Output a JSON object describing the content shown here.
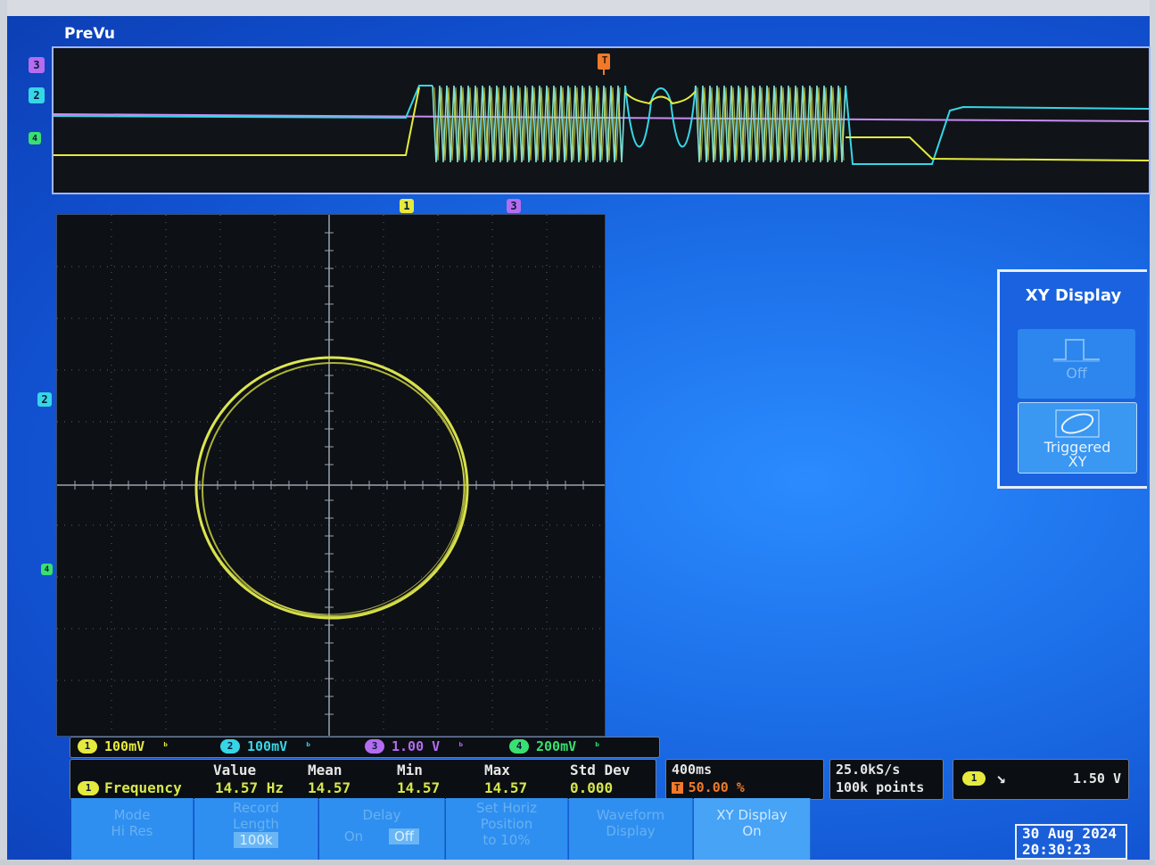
{
  "prevu": {
    "label": "PreVu"
  },
  "markers": {
    "trigger": "T",
    "ch1": "1",
    "ch2": "2",
    "ch3": "3",
    "ch4": "4"
  },
  "colors": {
    "ch1": "#e6ea3c",
    "ch2": "#36d6e6",
    "ch3": "#b46cf0",
    "ch4": "#39e070",
    "trigger": "#f07a2a"
  },
  "xy_menu": {
    "title": "XY Display",
    "off_label": "Off",
    "triggered_label_line1": "Triggered",
    "triggered_label_line2": "XY"
  },
  "channels": [
    {
      "num": "1",
      "scale": "100mV"
    },
    {
      "num": "2",
      "scale": "100mV"
    },
    {
      "num": "3",
      "scale": "1.00 V"
    },
    {
      "num": "4",
      "scale": "200mV"
    }
  ],
  "measurement": {
    "headers": {
      "value": "Value",
      "mean": "Mean",
      "min": "Min",
      "max": "Max",
      "std": "Std Dev"
    },
    "channel": "1",
    "name": "Frequency",
    "value": "14.57 Hz",
    "mean": "14.57",
    "min": "14.57",
    "max": "14.57",
    "std": "0.000"
  },
  "timebase": {
    "scale": "400ms",
    "trigger_pos": "50.00 %"
  },
  "acquisition": {
    "rate": "25.0kS/s",
    "record": "100k points"
  },
  "trigger": {
    "channel": "1",
    "slope": "falling",
    "level": "1.50 V"
  },
  "softkeys": {
    "mode_l1": "Mode",
    "mode_l2": "Hi Res",
    "record_l1": "Record",
    "record_l2": "Length",
    "record_l3": "100k",
    "delay_l1": "Delay",
    "delay_on": "On",
    "delay_off": "Off",
    "horiz_l1": "Set Horiz",
    "horiz_l2": "Position",
    "horiz_l3": "to 10%",
    "wave_l1": "Waveform",
    "wave_l2": "Display",
    "xy_l1": "XY Display",
    "xy_l2": "On"
  },
  "datetime": {
    "date": "30 Aug 2024",
    "time": "20:30:23"
  }
}
